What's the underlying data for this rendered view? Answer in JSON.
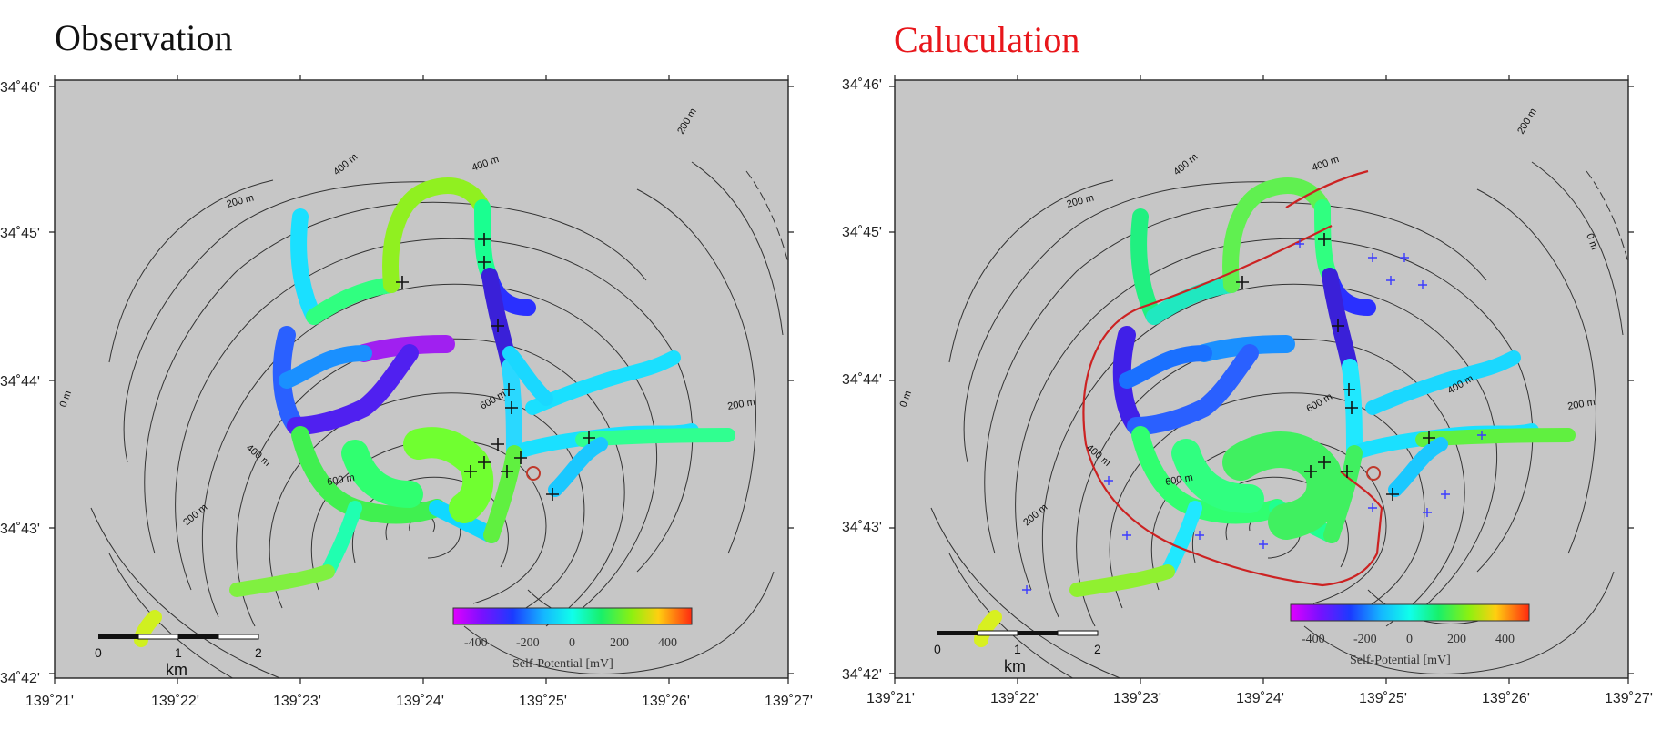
{
  "panels": [
    {
      "title": "Observation",
      "title_color": "#111111",
      "lat_labels": [
        "34˚46'",
        "34˚45'",
        "34˚44'",
        "34˚43'",
        "34˚42'"
      ],
      "lon_labels": [
        "139˚21'",
        "139˚22'",
        "139˚23'",
        "139˚24'",
        "139˚25'",
        "139˚26'",
        "139˚27'"
      ],
      "contour_labels": [
        "200 m",
        "400 m",
        "200 m",
        "0 m",
        "400 m",
        "200 m",
        "600 m",
        "600 m",
        "400 m",
        "200 m"
      ],
      "colorbar": {
        "ticks": [
          "-400",
          "-200",
          "0",
          "200",
          "400"
        ],
        "label": "Self-Potential [mV]"
      },
      "scale": {
        "ticks": [
          "0",
          "1",
          "2"
        ],
        "unit": "km"
      }
    },
    {
      "title": "Caluculation",
      "title_color": "#e8161b",
      "lat_labels": [
        "34˚46'",
        "34˚45'",
        "34˚44'",
        "34˚43'",
        "34˚42'"
      ],
      "lon_labels": [
        "139˚21'",
        "139˚22'",
        "139˚23'",
        "139˚24'",
        "139˚25'",
        "139˚26'",
        "139˚27'"
      ],
      "contour_labels": [
        "200 m",
        "400 m",
        "400 m",
        "200 m",
        "0 m",
        "0 m",
        "400 m",
        "400 m",
        "600 m",
        "600 m",
        "200 m",
        "200 m"
      ],
      "colorbar": {
        "ticks": [
          "-400",
          "-200",
          "0",
          "200",
          "400"
        ],
        "label": "Self-Potential [mV]"
      },
      "scale": {
        "ticks": [
          "0",
          "1",
          "2"
        ],
        "unit": "km"
      }
    }
  ],
  "colors": {
    "map_background": "#c6c6c6",
    "contour": "#333333",
    "model_outline": "#cc2222",
    "station_cross": "#111111",
    "model_cross": "#3b3bff"
  }
}
